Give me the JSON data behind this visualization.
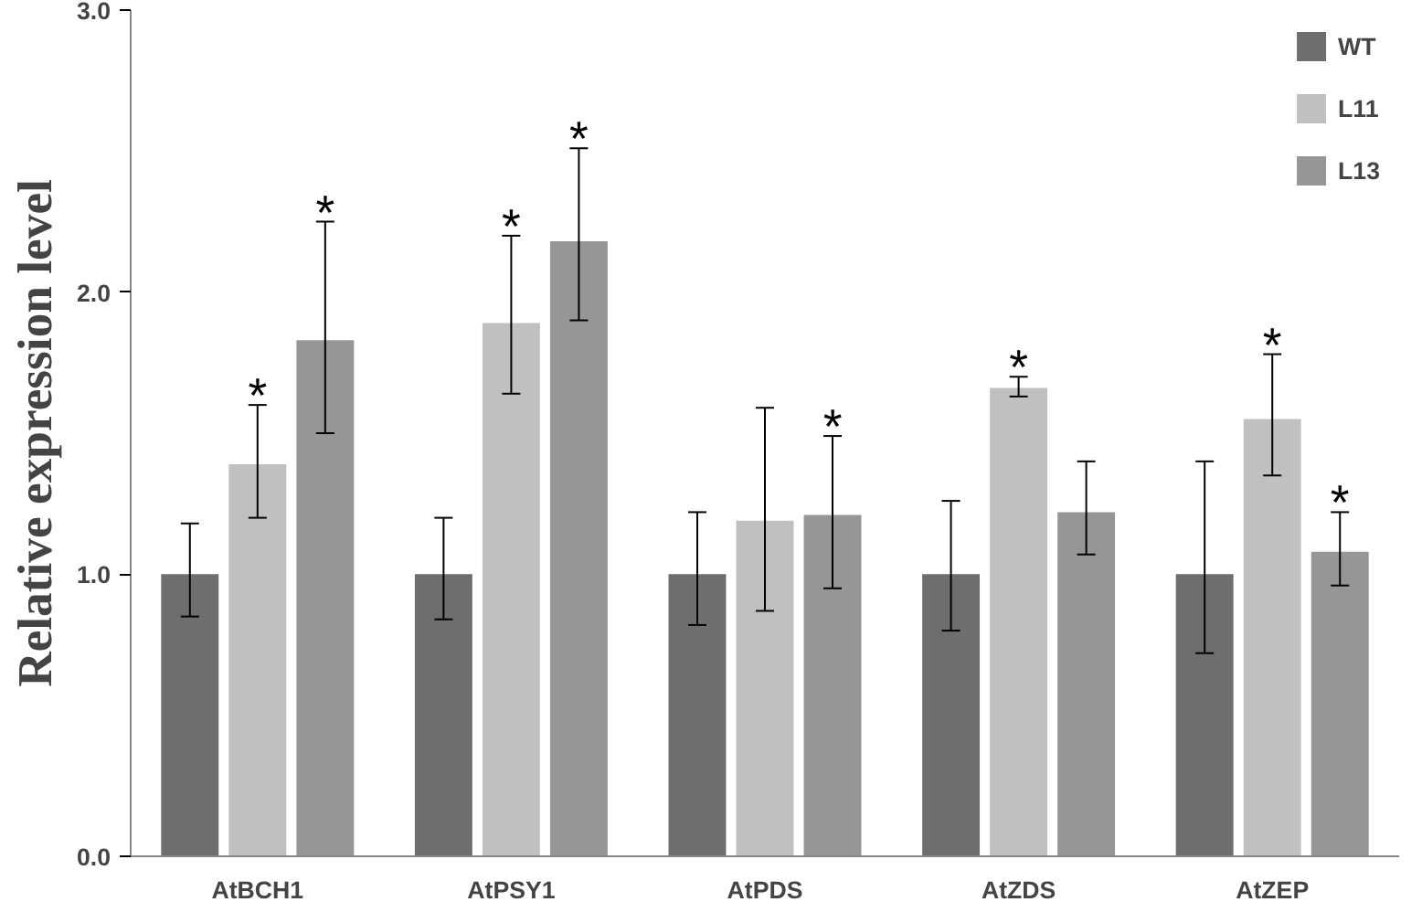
{
  "chart_data": {
    "type": "bar",
    "ylabel": "Relative expression level",
    "categories": [
      "AtBCH1",
      "AtPSY1",
      "AtPDS",
      "AtZDS",
      "AtZEP"
    ],
    "series": [
      {
        "name": "WT",
        "color": "#6e6e6e",
        "values": [
          1.0,
          1.0,
          1.0,
          1.0,
          1.0
        ],
        "errors": [
          [
            0.85,
            1.18
          ],
          [
            0.84,
            1.2
          ],
          [
            0.82,
            1.22
          ],
          [
            0.8,
            1.26
          ],
          [
            0.72,
            1.4
          ]
        ]
      },
      {
        "name": "L11",
        "color": "#c0c0c0",
        "values": [
          1.39,
          1.89,
          1.19,
          1.66,
          1.55
        ],
        "errors": [
          [
            1.2,
            1.6
          ],
          [
            1.64,
            2.2
          ],
          [
            0.87,
            1.59
          ],
          [
            1.63,
            1.7
          ],
          [
            1.35,
            1.78
          ]
        ],
        "value_labels": [
          "*",
          "*",
          null,
          "*",
          "*"
        ]
      },
      {
        "name": "L13",
        "color": "#969696",
        "values": [
          1.83,
          2.18,
          1.21,
          1.22,
          1.08
        ],
        "errors": [
          [
            1.5,
            2.25
          ],
          [
            1.9,
            2.51
          ],
          [
            0.95,
            1.49
          ],
          [
            1.07,
            1.4
          ],
          [
            0.96,
            1.22
          ]
        ],
        "value_labels": [
          "*",
          "*",
          "*",
          null,
          "*"
        ]
      }
    ],
    "ylim": [
      0,
      3
    ],
    "yticks": [
      {
        "value": 0,
        "label": "0.0"
      },
      {
        "value": 1,
        "label": "1.0"
      },
      {
        "value": 2,
        "label": "2.0"
      },
      {
        "value": 3,
        "label": "3.0"
      }
    ],
    "grid": false,
    "legend": "top right"
  }
}
